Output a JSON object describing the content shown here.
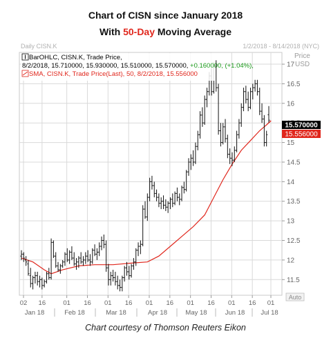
{
  "header": {
    "title": "Chart of CISN since January 2018",
    "subtitle_prefix": "With ",
    "subtitle_highlight": "50-Day",
    "subtitle_suffix": " Moving Average"
  },
  "caption": "Chart courtesy of Thomson Reuters Eikon",
  "colors": {
    "price_bars": "#111111",
    "sma": "#e0261c",
    "grid": "#d9d9d9",
    "last_price_label": "#000000",
    "sma_label": "#e0261c"
  },
  "chart_data": {
    "type": "line",
    "top_left_label": "Daily CISN.K",
    "date_range_label": "1/2/2018 - 8/14/2018 (NYC)",
    "y_axis_title": "Price",
    "y_axis_unit": "USD",
    "ylim": [
      11.1,
      17.3
    ],
    "y_ticks": [
      11.5,
      12,
      12.5,
      13,
      13.5,
      14,
      14.5,
      15,
      15.5,
      16,
      16.5,
      17
    ],
    "grid": true,
    "legend": [
      {
        "icon": "bar-ohlc-icon",
        "line1": "BarOHLC, CISN.K, Trade Price,",
        "line2_values": "8/2/2018, 15.710000, 15.930000, 15.510000, 15.570000, ",
        "line2_change": "+0.160000, (+1.04%),",
        "color": "#000000"
      },
      {
        "icon": "sma-icon",
        "line1": "SMA, CISN.K, Trade Price(Last),  50, 8/2/2018, 15.556000",
        "color": "#e0261c"
      }
    ],
    "last_price_label": "15.570000",
    "sma_label": "15.556000",
    "x_day_ticks": [
      "02",
      "16",
      "01",
      "16",
      "01",
      "16",
      "01",
      "16",
      "01",
      "16",
      "01",
      "16",
      "01"
    ],
    "x_month_labels": [
      "Jan 18",
      "Feb 18",
      "Mar 18",
      "Apr 18",
      "May 18",
      "Jun 18",
      "Jul 18"
    ],
    "auto_label": "Auto",
    "series": [
      {
        "kind": "ohlc",
        "points": [
          [
            12.1,
            12.25,
            12.0,
            12.15
          ],
          [
            12.15,
            12.2,
            11.95,
            12.05
          ],
          [
            12.0,
            12.1,
            11.85,
            11.95
          ],
          [
            11.9,
            12.0,
            11.6,
            11.65
          ],
          [
            11.6,
            11.8,
            11.3,
            11.4
          ],
          [
            11.4,
            11.6,
            11.25,
            11.55
          ],
          [
            11.55,
            11.7,
            11.4,
            11.6
          ],
          [
            11.6,
            11.7,
            11.35,
            11.45
          ],
          [
            11.45,
            11.6,
            11.3,
            11.5
          ],
          [
            11.5,
            11.55,
            11.25,
            11.35
          ],
          [
            11.35,
            11.5,
            11.3,
            11.45
          ],
          [
            11.45,
            11.7,
            11.4,
            11.65
          ],
          [
            11.65,
            11.8,
            11.5,
            11.55
          ],
          [
            11.55,
            12.55,
            11.5,
            12.45
          ],
          [
            12.45,
            12.5,
            12.05,
            12.1
          ],
          [
            12.1,
            12.2,
            11.8,
            11.85
          ],
          [
            11.85,
            11.95,
            11.7,
            11.75
          ],
          [
            11.75,
            11.9,
            11.65,
            11.85
          ],
          [
            11.85,
            12.0,
            11.8,
            11.95
          ],
          [
            11.95,
            12.2,
            11.85,
            12.15
          ],
          [
            12.15,
            12.3,
            11.95,
            12.0
          ],
          [
            12.0,
            12.25,
            11.9,
            12.2
          ],
          [
            12.2,
            12.35,
            12.0,
            12.05
          ],
          [
            12.05,
            12.2,
            11.85,
            11.9
          ],
          [
            11.9,
            12.05,
            11.75,
            11.95
          ],
          [
            11.95,
            12.1,
            11.8,
            12.05
          ],
          [
            12.05,
            12.2,
            11.9,
            11.95
          ],
          [
            11.95,
            12.1,
            11.85,
            12.0
          ],
          [
            12.0,
            12.2,
            11.9,
            12.1
          ],
          [
            12.1,
            12.25,
            11.95,
            12.0
          ],
          [
            12.0,
            12.15,
            11.85,
            11.95
          ],
          [
            11.95,
            12.3,
            11.9,
            12.25
          ],
          [
            12.25,
            12.4,
            12.1,
            12.15
          ],
          [
            12.15,
            12.3,
            12.0,
            12.2
          ],
          [
            12.2,
            12.45,
            12.1,
            12.35
          ],
          [
            12.35,
            12.6,
            12.25,
            12.5
          ],
          [
            12.5,
            12.65,
            12.3,
            12.4
          ],
          [
            12.4,
            12.5,
            11.7,
            11.8
          ],
          [
            11.8,
            11.9,
            11.35,
            11.5
          ],
          [
            11.5,
            11.7,
            11.35,
            11.6
          ],
          [
            11.6,
            11.75,
            11.45,
            11.55
          ],
          [
            11.55,
            11.7,
            11.35,
            11.45
          ],
          [
            11.45,
            11.6,
            11.25,
            11.35
          ],
          [
            11.35,
            11.5,
            11.2,
            11.3
          ],
          [
            11.3,
            11.6,
            11.2,
            11.55
          ],
          [
            11.55,
            11.85,
            11.45,
            11.8
          ],
          [
            11.8,
            11.95,
            11.6,
            11.7
          ],
          [
            11.7,
            11.85,
            11.5,
            11.6
          ],
          [
            11.6,
            11.9,
            11.55,
            11.85
          ],
          [
            11.85,
            12.05,
            11.75,
            11.95
          ],
          [
            11.95,
            12.3,
            11.85,
            12.25
          ],
          [
            12.25,
            12.45,
            12.1,
            12.35
          ],
          [
            12.35,
            12.5,
            12.15,
            12.4
          ],
          [
            12.4,
            13.4,
            12.35,
            13.3
          ],
          [
            13.3,
            13.5,
            13.05,
            13.1
          ],
          [
            13.1,
            13.7,
            13.0,
            13.6
          ],
          [
            13.6,
            14.1,
            13.5,
            14.0
          ],
          [
            14.0,
            14.15,
            13.8,
            13.9
          ],
          [
            13.9,
            14.0,
            13.6,
            13.7
          ],
          [
            13.7,
            13.8,
            13.5,
            13.6
          ],
          [
            13.6,
            13.7,
            13.35,
            13.45
          ],
          [
            13.45,
            13.6,
            13.3,
            13.5
          ],
          [
            13.5,
            13.65,
            13.3,
            13.4
          ],
          [
            13.4,
            13.55,
            13.25,
            13.35
          ],
          [
            13.35,
            13.5,
            13.2,
            13.45
          ],
          [
            13.45,
            13.6,
            13.3,
            13.55
          ],
          [
            13.55,
            13.7,
            13.35,
            13.45
          ],
          [
            13.45,
            13.75,
            13.4,
            13.7
          ],
          [
            13.7,
            13.85,
            13.5,
            13.6
          ],
          [
            13.6,
            13.7,
            13.4,
            13.55
          ],
          [
            13.55,
            13.9,
            13.5,
            13.85
          ],
          [
            13.85,
            14.0,
            13.7,
            13.8
          ],
          [
            13.8,
            14.3,
            13.75,
            14.25
          ],
          [
            14.25,
            14.6,
            14.15,
            14.5
          ],
          [
            14.5,
            14.7,
            14.3,
            14.6
          ],
          [
            14.6,
            14.8,
            14.4,
            14.5
          ],
          [
            14.5,
            15.0,
            14.45,
            14.9
          ],
          [
            14.9,
            15.3,
            14.8,
            15.2
          ],
          [
            15.2,
            15.8,
            15.1,
            15.7
          ],
          [
            15.7,
            15.9,
            15.4,
            15.5
          ],
          [
            15.5,
            16.2,
            15.45,
            16.1
          ],
          [
            16.1,
            16.4,
            15.9,
            16.3
          ],
          [
            16.3,
            16.8,
            16.2,
            16.7
          ],
          [
            16.7,
            16.9,
            16.2,
            16.3
          ],
          [
            16.3,
            17.05,
            16.25,
            16.95
          ],
          [
            16.95,
            17.1,
            16.3,
            16.4
          ],
          [
            16.4,
            16.5,
            15.2,
            15.3
          ],
          [
            15.3,
            15.5,
            14.9,
            15.0
          ],
          [
            15.0,
            15.5,
            14.95,
            15.4
          ],
          [
            15.4,
            15.6,
            15.0,
            15.1
          ],
          [
            15.1,
            15.2,
            14.6,
            14.7
          ],
          [
            14.7,
            14.85,
            14.45,
            14.6
          ],
          [
            14.6,
            14.75,
            14.4,
            14.55
          ],
          [
            14.55,
            14.9,
            14.5,
            14.8
          ],
          [
            14.8,
            15.3,
            14.75,
            15.2
          ],
          [
            15.2,
            15.6,
            15.1,
            15.5
          ],
          [
            15.5,
            16.0,
            15.4,
            15.9
          ],
          [
            15.9,
            16.4,
            15.8,
            16.3
          ],
          [
            16.3,
            16.45,
            16.0,
            16.1
          ],
          [
            16.1,
            16.3,
            15.8,
            15.9
          ],
          [
            15.9,
            16.4,
            15.85,
            16.3
          ],
          [
            16.3,
            16.5,
            16.1,
            16.4
          ],
          [
            16.4,
            16.6,
            16.3,
            16.5
          ],
          [
            16.5,
            16.6,
            16.2,
            16.3
          ],
          [
            16.3,
            16.4,
            15.7,
            15.8
          ],
          [
            15.8,
            16.0,
            15.5,
            15.6
          ],
          [
            15.6,
            15.7,
            14.9,
            15.0
          ],
          [
            15.0,
            15.3,
            14.9,
            15.2
          ],
          [
            15.71,
            15.93,
            15.51,
            15.57
          ]
        ]
      },
      {
        "kind": "sma",
        "points": [
          [
            0,
            12.05
          ],
          [
            5,
            11.95
          ],
          [
            10,
            11.75
          ],
          [
            13,
            11.65
          ],
          [
            18,
            11.75
          ],
          [
            25,
            11.85
          ],
          [
            32,
            11.88
          ],
          [
            40,
            11.88
          ],
          [
            48,
            11.92
          ],
          [
            55,
            11.95
          ],
          [
            60,
            12.1
          ],
          [
            65,
            12.35
          ],
          [
            70,
            12.6
          ],
          [
            75,
            12.85
          ],
          [
            80,
            13.15
          ],
          [
            84,
            13.6
          ],
          [
            88,
            14.05
          ],
          [
            92,
            14.45
          ],
          [
            96,
            14.8
          ],
          [
            100,
            15.05
          ],
          [
            104,
            15.3
          ],
          [
            107,
            15.45
          ],
          [
            109,
            15.556
          ]
        ]
      }
    ]
  }
}
